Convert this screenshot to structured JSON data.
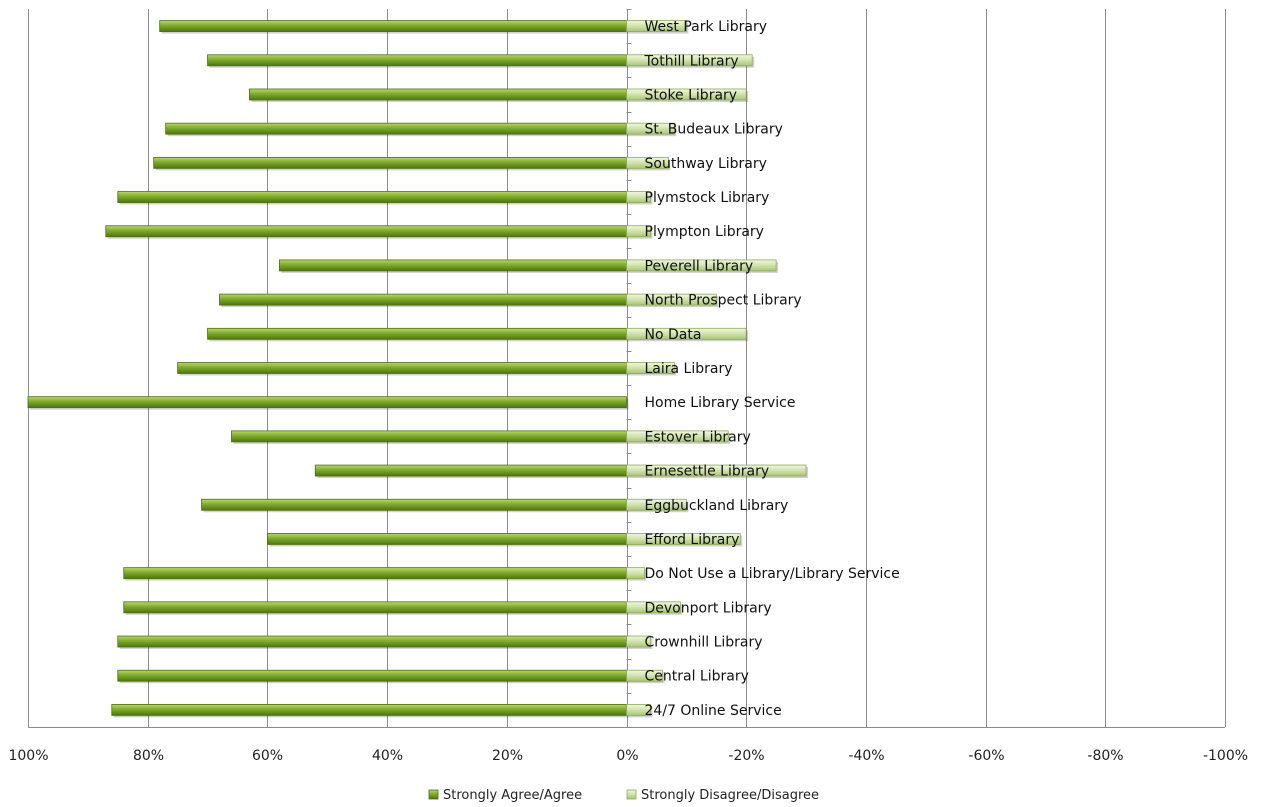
{
  "chart_data": {
    "type": "bar",
    "orientation": "horizontal",
    "x_axis": {
      "reversed": true,
      "range": [
        1.0,
        -1.0
      ],
      "tick_values": [
        1.0,
        0.8,
        0.6,
        0.4,
        0.2,
        0.0,
        -0.2,
        -0.4,
        -0.6,
        -0.8,
        -1.0
      ],
      "tick_labels": [
        "100%",
        "80%",
        "60%",
        "40%",
        "20%",
        "0%",
        "-20%",
        "-40%",
        "-60%",
        "-80%",
        "-100%"
      ],
      "grid": true
    },
    "categories": [
      "West Park Library",
      "Tothill Library",
      "Stoke Library",
      "St. Budeaux Library",
      "Southway Library",
      "Plymstock Library",
      "Plympton Library",
      "Peverell Library",
      "North Prospect Library",
      "No Data",
      "Laira Library",
      "Home Library Service",
      "Estover Library",
      "Ernesettle Library",
      "Eggbuckland Library",
      "Efford Library",
      "Do Not Use a Library/Library Service",
      "Devonport Library",
      "Crownhill Library",
      "Central Library",
      "24/7 Online Service"
    ],
    "series": [
      {
        "name": "Strongly Agree/Agree",
        "color": "#6d9a1e",
        "values": [
          0.78,
          0.7,
          0.63,
          0.77,
          0.79,
          0.85,
          0.87,
          0.58,
          0.68,
          0.7,
          0.75,
          1.0,
          0.66,
          0.52,
          0.71,
          0.6,
          0.84,
          0.84,
          0.85,
          0.85,
          0.86
        ]
      },
      {
        "name": "Strongly Disagree/Disagree",
        "color": "#d4e4b4",
        "values": [
          -0.1,
          -0.21,
          -0.2,
          -0.08,
          -0.07,
          -0.04,
          -0.04,
          -0.25,
          -0.15,
          -0.2,
          -0.08,
          0.0,
          -0.17,
          -0.3,
          -0.1,
          -0.19,
          -0.03,
          -0.09,
          -0.04,
          -0.06,
          -0.04
        ]
      }
    ],
    "legend": {
      "position": "bottom",
      "entries": [
        "Strongly Agree/Agree",
        "Strongly Disagree/Disagree"
      ]
    }
  }
}
